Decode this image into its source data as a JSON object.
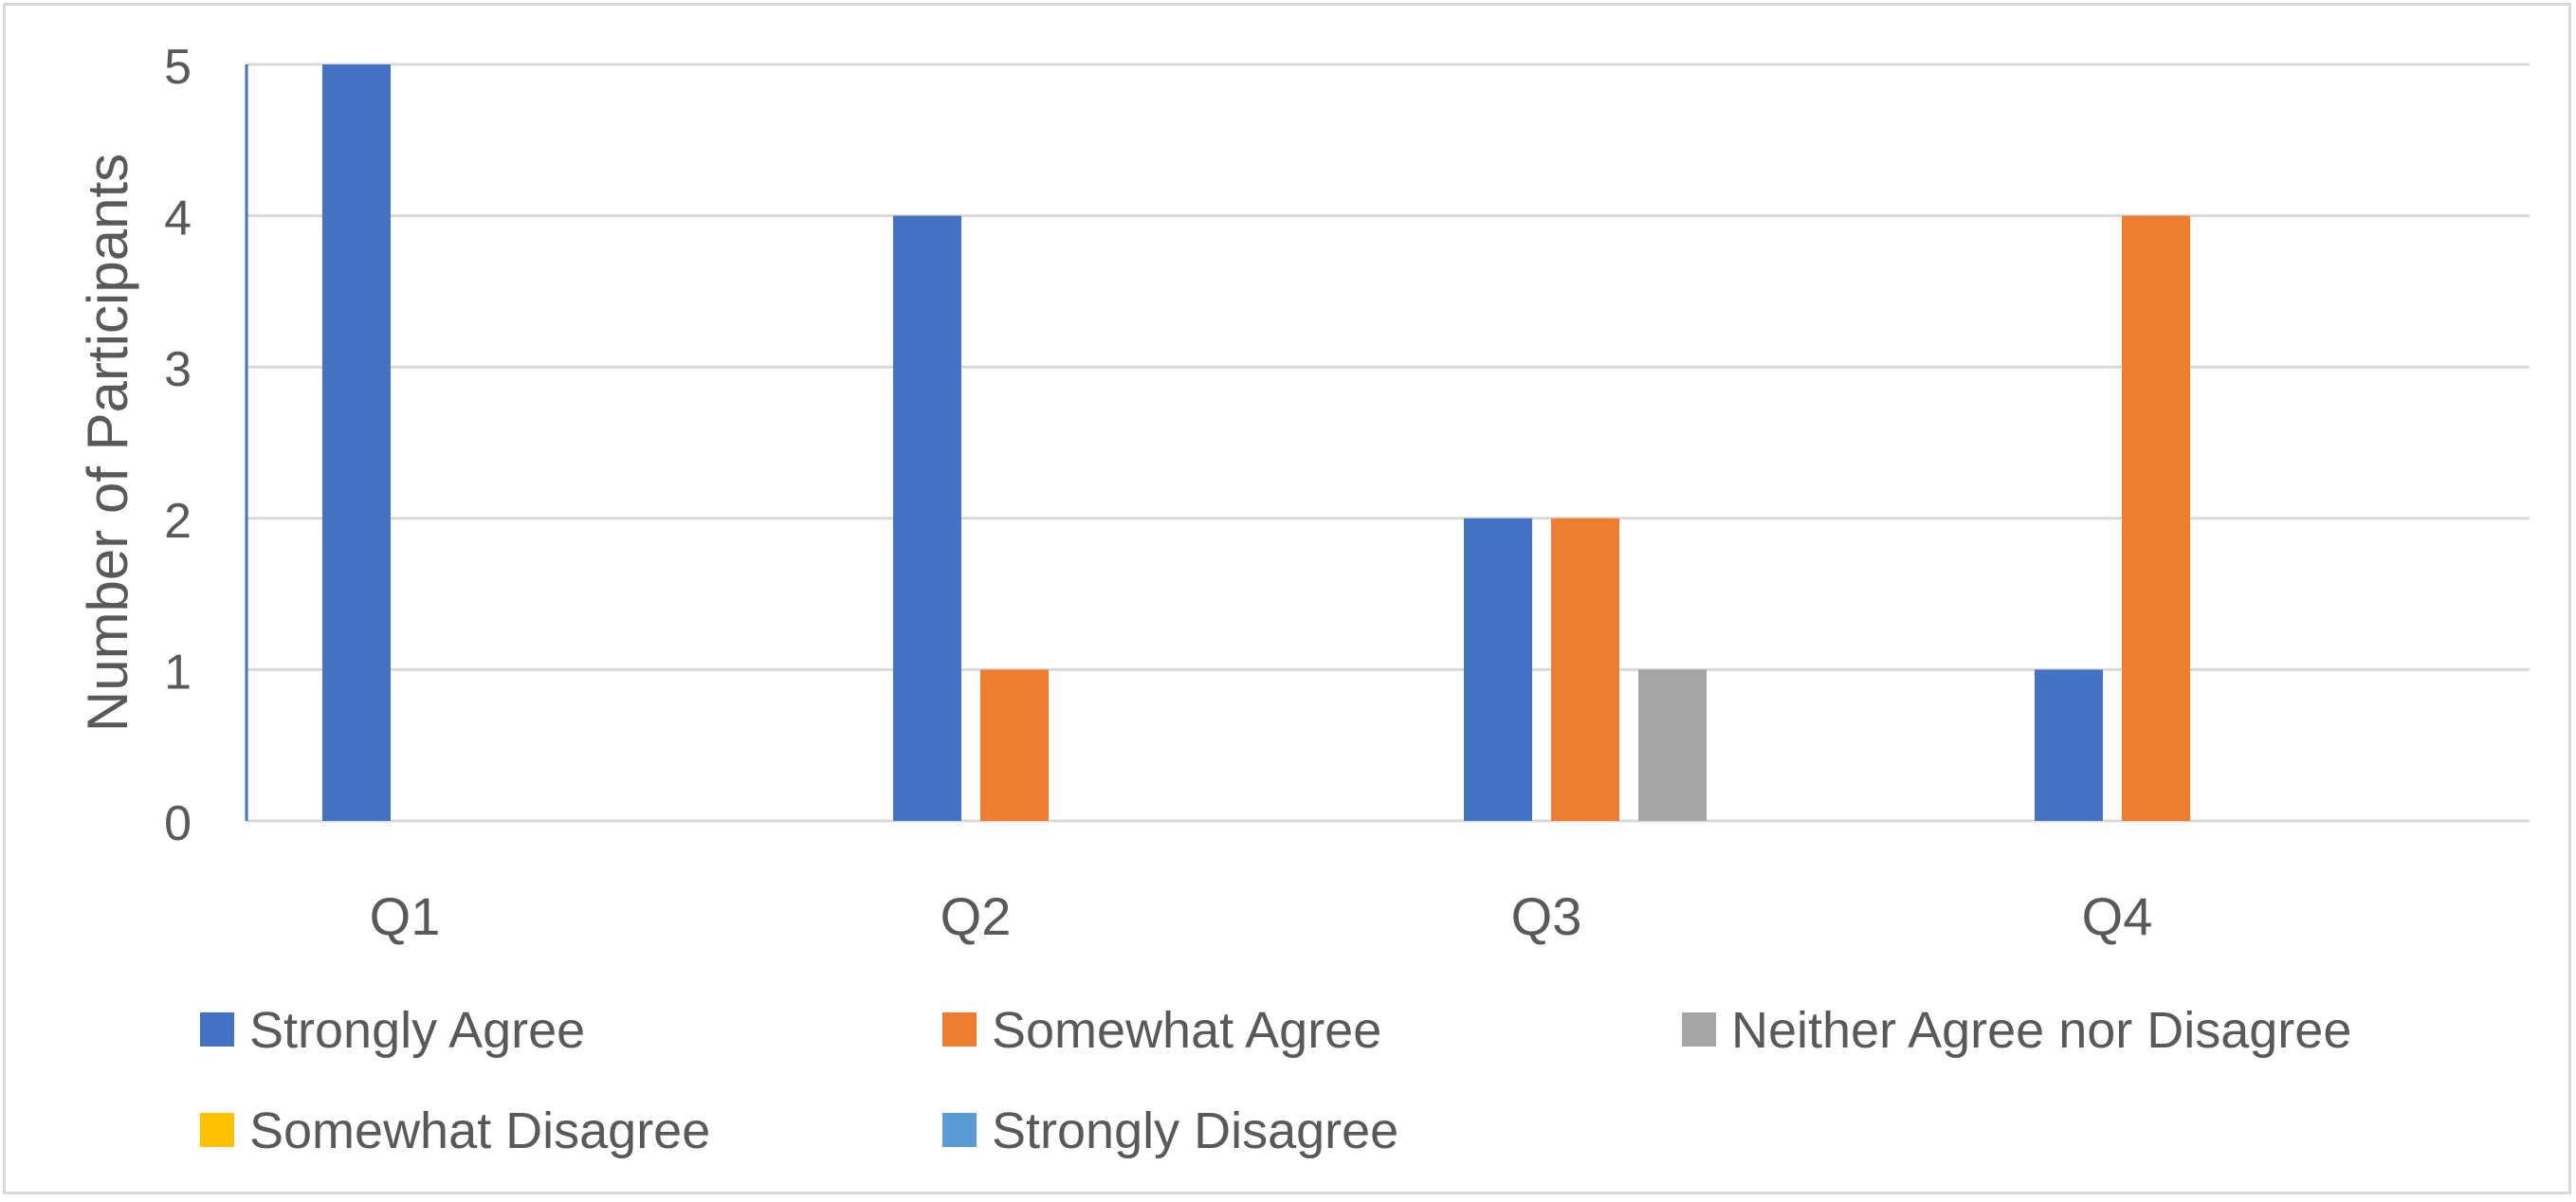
{
  "chart_data": {
    "type": "bar",
    "title": "",
    "xlabel": "",
    "ylabel": "Number of Participants",
    "ylim": [
      0,
      5
    ],
    "yticks": [
      "0",
      "1",
      "2",
      "3",
      "4",
      "5"
    ],
    "grid": true,
    "legend_position": "bottom",
    "categories": [
      "Q1",
      "Q2",
      "Q3",
      "Q4"
    ],
    "series": [
      {
        "name": "Strongly Agree",
        "color": "#4472c4",
        "values": [
          5,
          4,
          2,
          1
        ]
      },
      {
        "name": "Somewhat Agree",
        "color": "#ed7d31",
        "values": [
          0,
          1,
          2,
          4
        ]
      },
      {
        "name": "Neither Agree nor Disagree",
        "color": "#a5a5a5",
        "values": [
          0,
          0,
          1,
          0
        ]
      },
      {
        "name": "Somewhat Disagree",
        "color": "#ffc000",
        "values": [
          0,
          0,
          0,
          0
        ]
      },
      {
        "name": "Strongly Disagree",
        "color": "#5b9bd5",
        "values": [
          0,
          0,
          0,
          0
        ]
      }
    ]
  }
}
